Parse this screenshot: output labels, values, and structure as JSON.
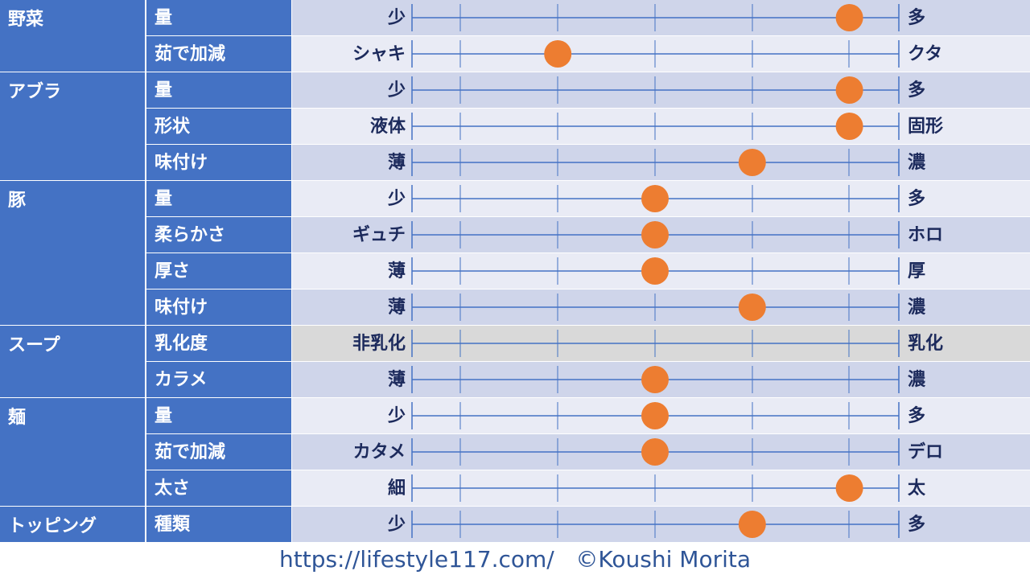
{
  "chart_data": {
    "type": "scatter",
    "title": "",
    "scale_steps": 6,
    "colors": {
      "category_bg": "#4472c4",
      "row_dark": "#cfd5ea",
      "row_light": "#e9ebf5",
      "row_disabled": "#d9d9d9",
      "line": "#4472c4",
      "marker": "#ed7d31",
      "text_dark": "#1c2a5c"
    },
    "categories": [
      {
        "name": "野菜",
        "rows": [
          {
            "attr": "量",
            "left": "少",
            "right": "多",
            "value": 4.5
          },
          {
            "attr": "茹で加減",
            "left": "シャキ",
            "right": "クタ",
            "value": 1.5
          }
        ]
      },
      {
        "name": "アブラ",
        "rows": [
          {
            "attr": "量",
            "left": "少",
            "right": "多",
            "value": 4.5
          },
          {
            "attr": "形状",
            "left": "液体",
            "right": "固形",
            "value": 4.5
          },
          {
            "attr": "味付け",
            "left": "薄",
            "right": "濃",
            "value": 3.5
          }
        ]
      },
      {
        "name": "豚",
        "rows": [
          {
            "attr": "量",
            "left": "少",
            "right": "多",
            "value": 2.5
          },
          {
            "attr": "柔らかさ",
            "left": "ギュチ",
            "right": "ホロ",
            "value": 2.5
          },
          {
            "attr": "厚さ",
            "left": "薄",
            "right": "厚",
            "value": 2.5
          },
          {
            "attr": "味付け",
            "left": "薄",
            "right": "濃",
            "value": 3.5
          }
        ]
      },
      {
        "name": "スープ",
        "rows": [
          {
            "attr": "乳化度",
            "left": "非乳化",
            "right": "乳化",
            "value": null
          },
          {
            "attr": "カラメ",
            "left": "薄",
            "right": "濃",
            "value": 2.5
          }
        ]
      },
      {
        "name": "麺",
        "rows": [
          {
            "attr": "量",
            "left": "少",
            "right": "多",
            "value": 2.5
          },
          {
            "attr": "茹で加減",
            "left": "カタメ",
            "right": "デロ",
            "value": 2.5
          },
          {
            "attr": "太さ",
            "left": "細",
            "right": "太",
            "value": 4.5
          }
        ]
      },
      {
        "name": "トッピング",
        "rows": [
          {
            "attr": "種類",
            "left": "少",
            "right": "多",
            "value": 3.5
          }
        ]
      }
    ]
  },
  "footer": {
    "url": "https://lifestyle117.com/",
    "copyright": "©Koushi Morita"
  }
}
